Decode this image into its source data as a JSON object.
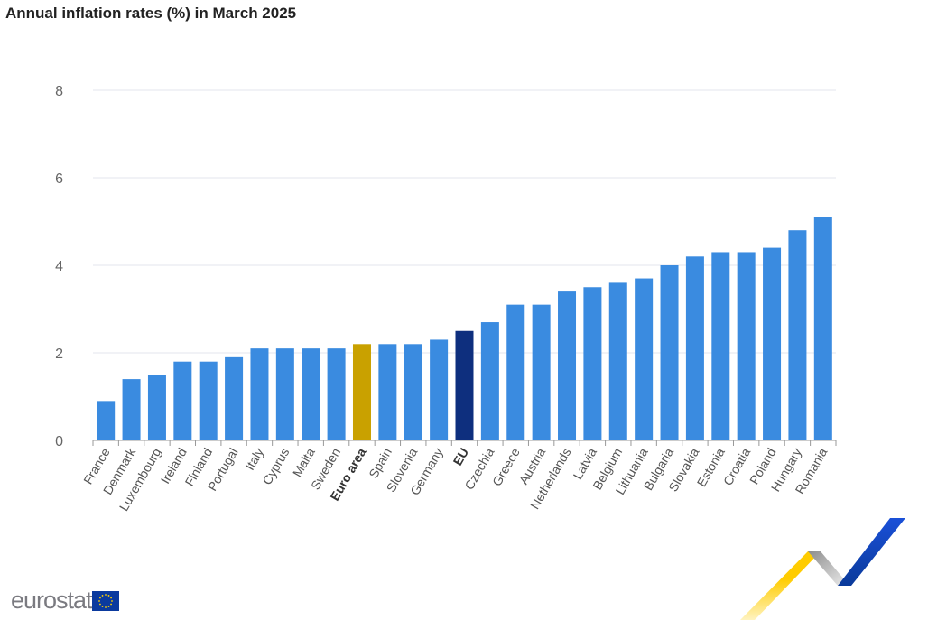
{
  "chart_data": {
    "type": "bar",
    "title": "Annual inflation rates (%) in March 2025",
    "xlabel": "",
    "ylabel": "",
    "ylim": [
      0,
      8
    ],
    "yticks": [
      0,
      2,
      4,
      6,
      8
    ],
    "grid": true,
    "categories": [
      "France",
      "Denmark",
      "Luxembourg",
      "Ireland",
      "Finland",
      "Portugal",
      "Italy",
      "Cyprus",
      "Malta",
      "Sweden",
      "Euro area",
      "Spain",
      "Slovenia",
      "Germany",
      "EU",
      "Czechia",
      "Greece",
      "Austria",
      "Netherlands",
      "Latvia",
      "Belgium",
      "Lithuania",
      "Bulgaria",
      "Slovakia",
      "Estonia",
      "Croatia",
      "Poland",
      "Hungary",
      "Romania"
    ],
    "values": [
      0.9,
      1.4,
      1.5,
      1.8,
      1.8,
      1.9,
      2.1,
      2.1,
      2.1,
      2.1,
      2.2,
      2.2,
      2.2,
      2.3,
      2.5,
      2.7,
      3.1,
      3.1,
      3.4,
      3.5,
      3.6,
      3.7,
      4.0,
      4.2,
      4.3,
      4.3,
      4.4,
      4.8,
      5.1
    ],
    "highlight": {
      "Euro area": "#c9a100",
      "EU": "#0e2f7e"
    },
    "bold_categories": [
      "Euro area",
      "EU"
    ],
    "default_color": "#3a8be0"
  },
  "logo": {
    "text": "eurostat"
  }
}
